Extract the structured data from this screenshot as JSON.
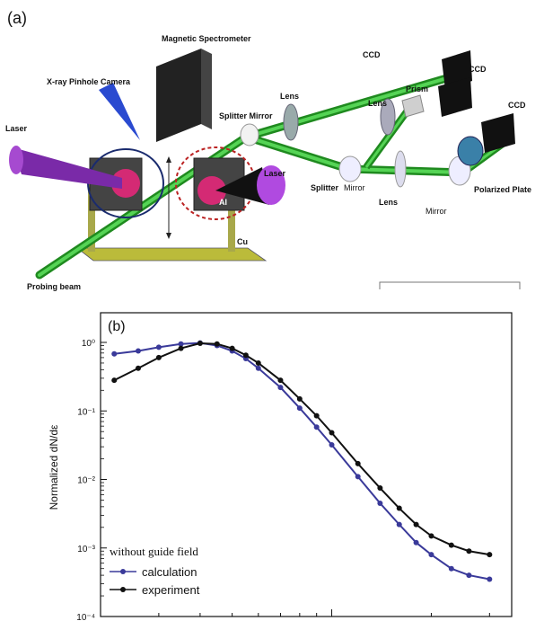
{
  "panel_a": {
    "label": "(a)",
    "labels": {
      "magnetic_spectrometer": "Magnetic Spectrometer",
      "xray_camera": "X-ray Pinhole Camera",
      "laser_left": "Laser",
      "laser_right": "Laser",
      "splitter_mirror_top": "Splitter Mirror",
      "lens_top": "Lens",
      "lens_mid": "Lens",
      "lens_low": "Lens",
      "ccd_top": "CCD",
      "ccd_mid": "CCD",
      "ccd_right": "CCD",
      "prism": "Prism",
      "splitter_low": "Splitter",
      "mirror_low": "Mirror",
      "mirror_right": "Mirror",
      "polarized_plate": "Polarized Plate",
      "al": "Al",
      "cu": "Cu",
      "probing_beam": "Probing beam"
    }
  },
  "panel_b": {
    "label": "(b)"
  },
  "chart_data": {
    "type": "scatter",
    "title": "",
    "xlabel": "",
    "ylabel": "Normalized dN/dε",
    "xscale": "log",
    "yscale": "log",
    "ylim": [
      0.0001,
      1.5
    ],
    "xlim": [
      0.2,
      3.5
    ],
    "y_ticks": [
      "10⁰",
      "10⁻¹",
      "10⁻²",
      "10⁻³",
      "10⁻⁴"
    ],
    "legend_title": "without guide field",
    "legend_position": "bottom-left",
    "series": [
      {
        "name": "calculation",
        "color": "#3a3a9a",
        "x": [
          0.22,
          0.26,
          0.3,
          0.35,
          0.4,
          0.45,
          0.5,
          0.55,
          0.6,
          0.7,
          0.8,
          0.9,
          1.0,
          1.2,
          1.4,
          1.6,
          1.8,
          2.0,
          2.3,
          2.6,
          3.0
        ],
        "y": [
          0.68,
          0.75,
          0.85,
          0.95,
          0.98,
          0.9,
          0.75,
          0.58,
          0.42,
          0.22,
          0.11,
          0.058,
          0.032,
          0.011,
          0.0045,
          0.0022,
          0.0012,
          0.0008,
          0.0005,
          0.0004,
          0.00035
        ]
      },
      {
        "name": "experiment",
        "color": "#111111",
        "x": [
          0.22,
          0.26,
          0.3,
          0.35,
          0.4,
          0.45,
          0.5,
          0.55,
          0.6,
          0.7,
          0.8,
          0.9,
          1.0,
          1.2,
          1.4,
          1.6,
          1.8,
          2.0,
          2.3,
          2.6,
          3.0
        ],
        "y": [
          0.28,
          0.42,
          0.6,
          0.82,
          0.97,
          0.95,
          0.82,
          0.65,
          0.5,
          0.28,
          0.15,
          0.085,
          0.048,
          0.017,
          0.0075,
          0.0038,
          0.0022,
          0.0015,
          0.0011,
          0.0009,
          0.0008
        ]
      }
    ]
  }
}
